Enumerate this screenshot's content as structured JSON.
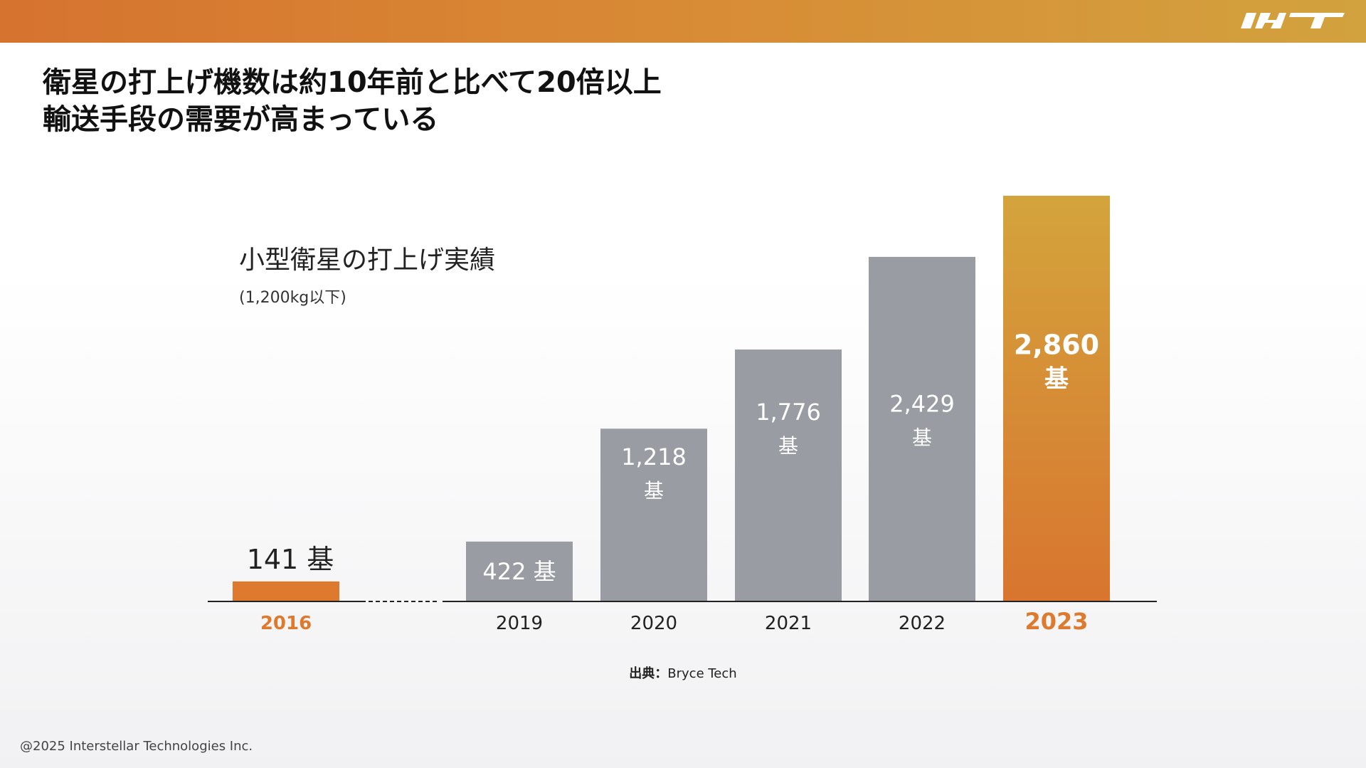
{
  "headline": {
    "line1": "衛星の打上げ機数は約10年前と比べて20倍以上",
    "line2": "輸送手段の需要が高まっている"
  },
  "logo": {
    "icon": "ist-logo-icon",
    "color": "#ffffff"
  },
  "colors": {
    "accent": "#dd7a2e",
    "bar_gray": "#999ca2",
    "highlight_top": "#d4a43c",
    "highlight_bottom": "#d8752f"
  },
  "chart_data": {
    "type": "bar",
    "title": "小型衛星の打上げ実績",
    "subtitle": "(1,200kg以下)",
    "categories": [
      "2016",
      "2019",
      "2020",
      "2021",
      "2022",
      "2023"
    ],
    "values": [
      141,
      422,
      1218,
      1776,
      2429,
      2860
    ],
    "value_labels": [
      "141",
      "422",
      "1,218",
      "1,776",
      "2,429",
      "2,860"
    ],
    "unit": "基",
    "highlighted": [
      "2016",
      "2023"
    ],
    "axis_break_between": [
      "2016",
      "2019"
    ],
    "ylim": [
      0,
      2860
    ],
    "grid": false,
    "legend": "none"
  },
  "source": {
    "label": "出典：",
    "value": "Bryce Tech"
  },
  "footer": {
    "copyright": "@2025 Interstellar Technologies Inc."
  }
}
